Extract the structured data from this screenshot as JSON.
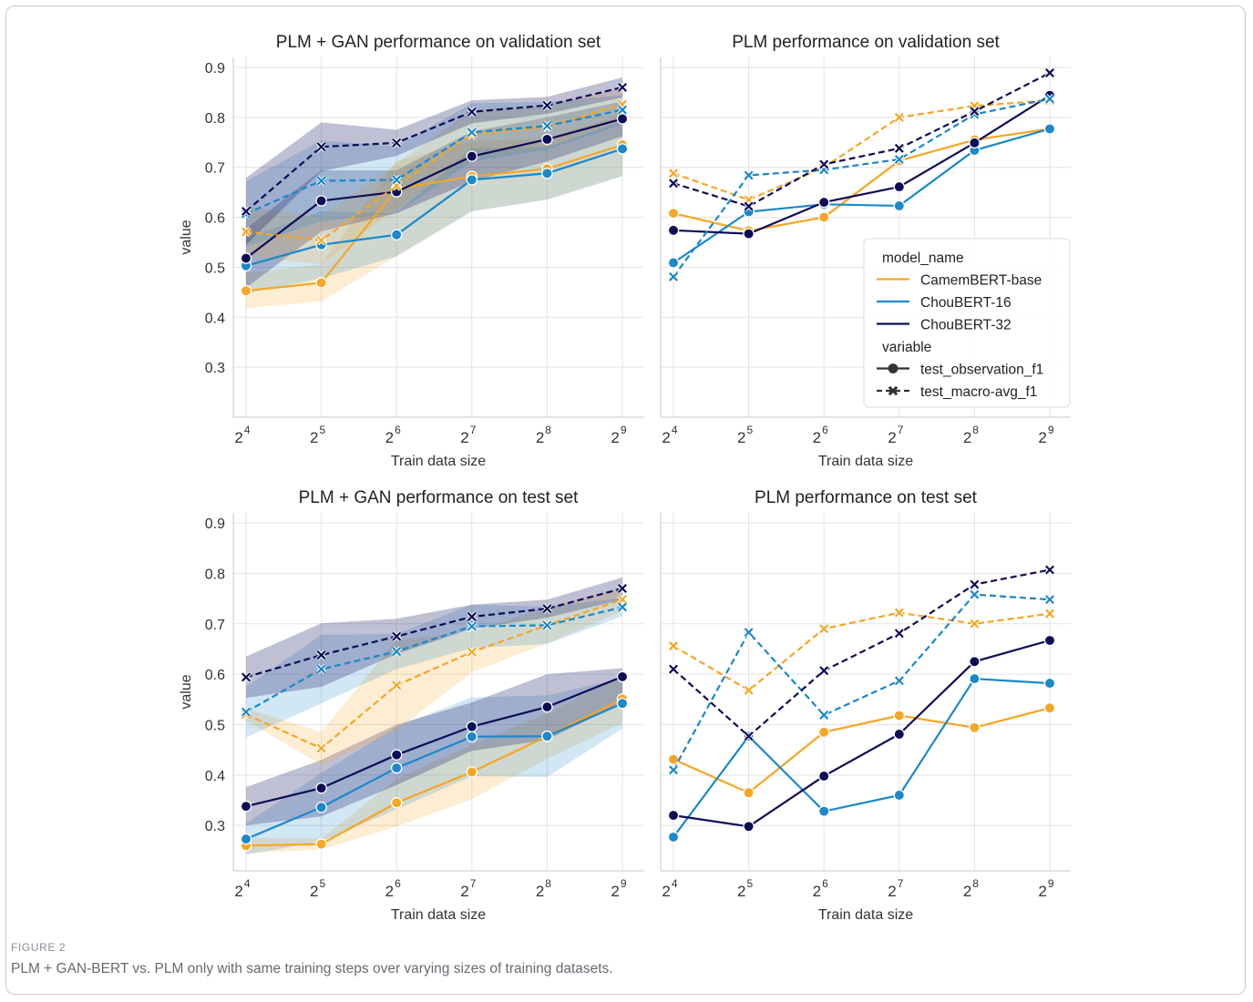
{
  "caption": {
    "label": "FIGURE 2",
    "text": "PLM + GAN-BERT vs. PLM only with same training steps over varying sizes of training datasets."
  },
  "colors": {
    "CamemBERT-base": "#f5a623",
    "ChouBERT-16": "#1a88c9",
    "ChouBERT-32": "#0d0d57",
    "grid": "#e3e3e3",
    "spine": "#d2d2d2"
  },
  "legend": {
    "title1": "model_name",
    "items": [
      "CamemBERT-base",
      "ChouBERT-16",
      "ChouBERT-32"
    ],
    "title2": "variable",
    "styles": [
      "test_observation_f1",
      "test_macro-avg_f1"
    ],
    "placement": "right (first row, right panel)"
  },
  "chart_data": [
    {
      "type": "line",
      "title": "PLM + GAN performance on validation set",
      "xlabel": "Train data size",
      "ylabel": "value",
      "x": [
        16,
        32,
        64,
        128,
        256,
        512
      ],
      "x_tick_base": "2",
      "x_tick_exponents": [
        "4",
        "5",
        "6",
        "7",
        "8",
        "9"
      ],
      "xscale": "log2",
      "ylim": [
        0.2,
        0.92
      ],
      "yticks": [
        "0.3",
        "0.4",
        "0.5",
        "0.6",
        "0.7",
        "0.8",
        "0.9"
      ],
      "grid": true,
      "series": [
        {
          "name": "CamemBERT-base",
          "variable": "test_observation_f1",
          "values": [
            0.453,
            0.469,
            0.657,
            0.682,
            0.697,
            0.745
          ],
          "ci_low": [
            0.418,
            0.432,
            0.522,
            0.612,
            0.636,
            0.683
          ],
          "ci_high": [
            0.488,
            0.506,
            0.713,
            0.752,
            0.758,
            0.807
          ]
        },
        {
          "name": "ChouBERT-16",
          "variable": "test_observation_f1",
          "values": [
            0.503,
            0.545,
            0.565,
            0.675,
            0.688,
            0.737
          ],
          "ci_low": [
            0.447,
            0.478,
            0.522,
            0.612,
            0.635,
            0.682
          ],
          "ci_high": [
            0.559,
            0.612,
            0.608,
            0.738,
            0.741,
            0.792
          ]
        },
        {
          "name": "ChouBERT-32",
          "variable": "test_observation_f1",
          "values": [
            0.518,
            0.633,
            0.651,
            0.722,
            0.756,
            0.797
          ],
          "ci_low": [
            0.459,
            0.572,
            0.608,
            0.672,
            0.712,
            0.762
          ],
          "ci_high": [
            0.577,
            0.694,
            0.694,
            0.772,
            0.8,
            0.832
          ]
        },
        {
          "name": "CamemBERT-base",
          "variable": "test_macro-avg_f1",
          "values": [
            0.571,
            0.554,
            0.663,
            0.766,
            0.781,
            0.826
          ],
          "ci_low": [
            0.522,
            0.506,
            0.618,
            0.718,
            0.74,
            0.792
          ],
          "ci_high": [
            0.62,
            0.602,
            0.708,
            0.814,
            0.822,
            0.86
          ]
        },
        {
          "name": "ChouBERT-16",
          "variable": "test_macro-avg_f1",
          "values": [
            0.607,
            0.673,
            0.675,
            0.77,
            0.783,
            0.815
          ],
          "ci_low": [
            0.542,
            0.592,
            0.608,
            0.712,
            0.735,
            0.786
          ],
          "ci_high": [
            0.672,
            0.754,
            0.742,
            0.828,
            0.831,
            0.844
          ]
        },
        {
          "name": "ChouBERT-32",
          "variable": "test_macro-avg_f1",
          "values": [
            0.612,
            0.741,
            0.749,
            0.811,
            0.824,
            0.86
          ],
          "ci_low": [
            0.545,
            0.692,
            0.723,
            0.788,
            0.807,
            0.84
          ],
          "ci_high": [
            0.679,
            0.79,
            0.775,
            0.834,
            0.841,
            0.88
          ]
        }
      ]
    },
    {
      "type": "line",
      "title": "PLM performance on validation set",
      "xlabel": "Train data size",
      "ylabel": "",
      "x": [
        16,
        32,
        64,
        128,
        256,
        512
      ],
      "x_tick_base": "2",
      "x_tick_exponents": [
        "4",
        "5",
        "6",
        "7",
        "8",
        "9"
      ],
      "xscale": "log2",
      "ylim": [
        0.2,
        0.92
      ],
      "grid": true,
      "series": [
        {
          "name": "CamemBERT-base",
          "variable": "test_observation_f1",
          "values": [
            0.608,
            0.573,
            0.6,
            0.713,
            0.755,
            0.777
          ]
        },
        {
          "name": "ChouBERT-16",
          "variable": "test_observation_f1",
          "values": [
            0.509,
            0.611,
            0.626,
            0.623,
            0.734,
            0.777
          ]
        },
        {
          "name": "ChouBERT-32",
          "variable": "test_observation_f1",
          "values": [
            0.574,
            0.567,
            0.63,
            0.661,
            0.749,
            0.844
          ]
        },
        {
          "name": "CamemBERT-base",
          "variable": "test_macro-avg_f1",
          "values": [
            0.688,
            0.635,
            0.7,
            0.8,
            0.823,
            0.834
          ]
        },
        {
          "name": "ChouBERT-16",
          "variable": "test_macro-avg_f1",
          "values": [
            0.481,
            0.684,
            0.695,
            0.716,
            0.806,
            0.837
          ]
        },
        {
          "name": "ChouBERT-32",
          "variable": "test_macro-avg_f1",
          "values": [
            0.668,
            0.622,
            0.706,
            0.738,
            0.812,
            0.889
          ]
        }
      ]
    },
    {
      "type": "line",
      "title": "PLM + GAN performance on test set",
      "xlabel": "Train data size",
      "ylabel": "value",
      "x": [
        16,
        32,
        64,
        128,
        256,
        512
      ],
      "x_tick_base": "2",
      "x_tick_exponents": [
        "4",
        "5",
        "6",
        "7",
        "8",
        "9"
      ],
      "xscale": "log2",
      "ylim": [
        0.21,
        0.92
      ],
      "yticks": [
        "0.3",
        "0.4",
        "0.5",
        "0.6",
        "0.7",
        "0.8",
        "0.9"
      ],
      "grid": true,
      "series": [
        {
          "name": "CamemBERT-base",
          "variable": "test_observation_f1",
          "values": [
            0.26,
            0.263,
            0.345,
            0.406,
            0.477,
            0.551
          ],
          "ci_low": [
            0.245,
            0.252,
            0.298,
            0.352,
            0.432,
            0.503
          ],
          "ci_high": [
            0.275,
            0.274,
            0.392,
            0.46,
            0.522,
            0.599
          ]
        },
        {
          "name": "ChouBERT-16",
          "variable": "test_observation_f1",
          "values": [
            0.273,
            0.336,
            0.414,
            0.476,
            0.477,
            0.542
          ],
          "ci_low": [
            0.242,
            0.268,
            0.332,
            0.398,
            0.396,
            0.492
          ],
          "ci_high": [
            0.304,
            0.404,
            0.496,
            0.554,
            0.558,
            0.592
          ]
        },
        {
          "name": "ChouBERT-32",
          "variable": "test_observation_f1",
          "values": [
            0.338,
            0.374,
            0.44,
            0.496,
            0.535,
            0.595
          ],
          "ci_low": [
            0.3,
            0.318,
            0.38,
            0.448,
            0.47,
            0.543
          ],
          "ci_high": [
            0.376,
            0.43,
            0.5,
            0.544,
            0.6,
            0.612
          ]
        },
        {
          "name": "CamemBERT-base",
          "variable": "test_macro-avg_f1",
          "values": [
            0.52,
            0.453,
            0.578,
            0.644,
            0.697,
            0.748
          ],
          "ci_low": [
            0.508,
            0.42,
            0.488,
            0.604,
            0.661,
            0.725
          ],
          "ci_high": [
            0.532,
            0.486,
            0.668,
            0.684,
            0.733,
            0.771
          ]
        },
        {
          "name": "ChouBERT-16",
          "variable": "test_macro-avg_f1",
          "values": [
            0.525,
            0.61,
            0.645,
            0.695,
            0.697,
            0.733
          ],
          "ci_low": [
            0.475,
            0.542,
            0.61,
            0.652,
            0.66,
            0.715
          ],
          "ci_high": [
            0.575,
            0.678,
            0.68,
            0.738,
            0.734,
            0.751
          ]
        },
        {
          "name": "ChouBERT-32",
          "variable": "test_macro-avg_f1",
          "values": [
            0.594,
            0.638,
            0.675,
            0.714,
            0.73,
            0.77
          ],
          "ci_low": [
            0.553,
            0.575,
            0.64,
            0.69,
            0.712,
            0.748
          ],
          "ci_high": [
            0.635,
            0.701,
            0.71,
            0.738,
            0.748,
            0.792
          ]
        }
      ]
    },
    {
      "type": "line",
      "title": "PLM performance on test set",
      "xlabel": "Train data size",
      "ylabel": "",
      "x": [
        16,
        32,
        64,
        128,
        256,
        512
      ],
      "x_tick_base": "2",
      "x_tick_exponents": [
        "4",
        "5",
        "6",
        "7",
        "8",
        "9"
      ],
      "xscale": "log2",
      "ylim": [
        0.21,
        0.92
      ],
      "grid": true,
      "series": [
        {
          "name": "CamemBERT-base",
          "variable": "test_observation_f1",
          "values": [
            0.431,
            0.365,
            0.485,
            0.518,
            0.494,
            0.533
          ]
        },
        {
          "name": "ChouBERT-16",
          "variable": "test_observation_f1",
          "values": [
            0.277,
            0.477,
            0.328,
            0.36,
            0.591,
            0.582
          ]
        },
        {
          "name": "ChouBERT-32",
          "variable": "test_observation_f1",
          "values": [
            0.32,
            0.298,
            0.398,
            0.481,
            0.625,
            0.667
          ]
        },
        {
          "name": "CamemBERT-base",
          "variable": "test_macro-avg_f1",
          "values": [
            0.656,
            0.568,
            0.69,
            0.722,
            0.7,
            0.72
          ]
        },
        {
          "name": "ChouBERT-16",
          "variable": "test_macro-avg_f1",
          "values": [
            0.41,
            0.683,
            0.519,
            0.587,
            0.758,
            0.748
          ]
        },
        {
          "name": "ChouBERT-32",
          "variable": "test_macro-avg_f1",
          "values": [
            0.61,
            0.477,
            0.607,
            0.681,
            0.778,
            0.807
          ]
        }
      ]
    }
  ]
}
